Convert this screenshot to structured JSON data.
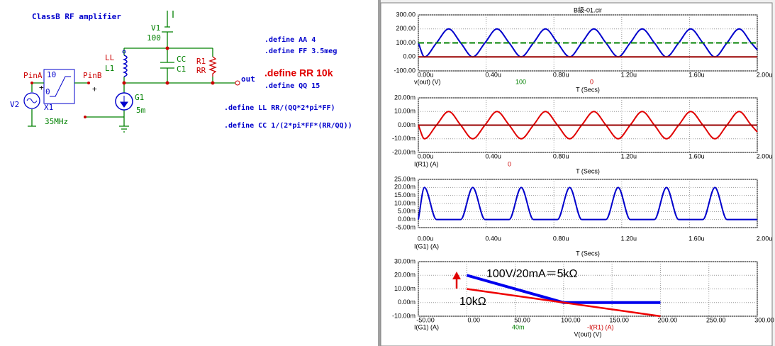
{
  "window_title": "B級-01.cir",
  "schematic": {
    "title": "ClassB  RF amplifier",
    "labels": {
      "v1": "V1",
      "v1_value": "100",
      "ll": "LL",
      "l1": "L1",
      "cc": "CC",
      "c1": "C1",
      "r1": "R1",
      "rr": "RR",
      "g1": "G1",
      "g1_value": "5m",
      "pin_a": "PinA",
      "pin_b": "PinB",
      "x1_high": "10",
      "x1_low": "0",
      "x1": "X1",
      "v2": "V2",
      "v2_value": "35MHz",
      "out": "out",
      "plus_a": "+",
      "plus_b": "+"
    },
    "defines": [
      ".define AA 4",
      ".define FF 3.5meg",
      ".define RR 10k",
      ".define QQ 15",
      ".define LL  RR/(QQ*2*pi*FF)",
      ".define CC 1/(2*pi*FF*(RR/QQ))"
    ]
  },
  "chart_data": [
    {
      "type": "line",
      "xlim": [
        0,
        2e-06
      ],
      "xticks": [
        {
          "value": 0,
          "label": "0.00u"
        },
        {
          "value": 4e-07,
          "label": "0.40u"
        },
        {
          "value": 8e-07,
          "label": "0.80u"
        },
        {
          "value": 1.2e-06,
          "label": "1.20u"
        },
        {
          "value": 1.6e-06,
          "label": "1.60u"
        },
        {
          "value": 2e-06,
          "label": "2.00u"
        }
      ],
      "ylim": [
        -100,
        300
      ],
      "yticks": [
        {
          "value": 300,
          "label": "300.00"
        },
        {
          "value": 200,
          "label": "200.00"
        },
        {
          "value": 100,
          "label": "100.00"
        },
        {
          "value": 0,
          "label": "0.00"
        },
        {
          "value": -100,
          "label": "-100.00"
        }
      ],
      "grid": true,
      "x_label": "T (Secs)",
      "y_label": "v(out) (V)",
      "readouts": [
        {
          "text": "100",
          "color": "#008000"
        },
        {
          "text": "0",
          "color": "#cc0000"
        }
      ],
      "series": [
        {
          "color": "#0000cc",
          "width": 2,
          "x": [
            0,
            3.6e-08,
            1.07e-07,
            1.79e-07,
            2.5e-07,
            3.21e-07,
            3.93e-07,
            4.64e-07,
            5.36e-07,
            6.07e-07,
            6.79e-07,
            7.5e-07,
            8.21e-07,
            8.93e-07,
            9.64e-07,
            1.036e-06,
            1.107e-06,
            1.179e-06,
            1.25e-06,
            1.321e-06,
            1.393e-06,
            1.464e-06,
            1.536e-06,
            1.607e-06,
            1.679e-06,
            1.75e-06,
            1.821e-06,
            1.893e-06,
            1.964e-06,
            2e-06
          ],
          "values": [
            100,
            0,
            100,
            200,
            100,
            0,
            100,
            200,
            100,
            0,
            100,
            200,
            100,
            0,
            100,
            200,
            100,
            0,
            100,
            200,
            100,
            0,
            100,
            200,
            100,
            0,
            100,
            200,
            100,
            50
          ]
        },
        {
          "color": "#008000",
          "width": 2,
          "dashed": true,
          "x": [
            0,
            2e-06
          ],
          "values": [
            100,
            100
          ]
        },
        {
          "color": "#990000",
          "width": 2,
          "x": [
            0,
            2e-06
          ],
          "values": [
            0,
            0
          ]
        }
      ]
    },
    {
      "type": "line",
      "xlim": [
        0,
        2e-06
      ],
      "xticks": [
        {
          "value": 0,
          "label": "0.00u"
        },
        {
          "value": 4e-07,
          "label": "0.40u"
        },
        {
          "value": 8e-07,
          "label": "0.80u"
        },
        {
          "value": 1.2e-06,
          "label": "1.20u"
        },
        {
          "value": 1.6e-06,
          "label": "1.60u"
        },
        {
          "value": 2e-06,
          "label": "2.00u"
        }
      ],
      "ylim": [
        -0.02,
        0.02
      ],
      "yticks": [
        {
          "value": 0.02,
          "label": "20.00m"
        },
        {
          "value": 0.01,
          "label": "10.00m"
        },
        {
          "value": 0,
          "label": "0.00m"
        },
        {
          "value": -0.01,
          "label": "-10.00m"
        },
        {
          "value": -0.02,
          "label": "-20.00m"
        }
      ],
      "grid": true,
      "x_label": "T (Secs)",
      "y_label": "I(R1) (A)",
      "readouts": [
        {
          "text": "0",
          "color": "#cc0000"
        }
      ],
      "series": [
        {
          "color": "#e00000",
          "width": 2,
          "x": [
            0,
            3.6e-08,
            1.07e-07,
            1.79e-07,
            2.5e-07,
            3.21e-07,
            3.93e-07,
            4.64e-07,
            5.36e-07,
            6.07e-07,
            6.79e-07,
            7.5e-07,
            8.21e-07,
            8.93e-07,
            9.64e-07,
            1.036e-06,
            1.107e-06,
            1.179e-06,
            1.25e-06,
            1.321e-06,
            1.393e-06,
            1.464e-06,
            1.536e-06,
            1.607e-06,
            1.679e-06,
            1.75e-06,
            1.821e-06,
            1.893e-06,
            1.964e-06,
            2e-06
          ],
          "values": [
            0,
            -0.01,
            0,
            0.01,
            0,
            -0.01,
            0,
            0.01,
            0,
            -0.01,
            0,
            0.01,
            0,
            -0.01,
            0,
            0.01,
            0,
            -0.01,
            0,
            0.01,
            0,
            -0.01,
            0,
            0.01,
            0,
            -0.01,
            0,
            0.01,
            0,
            -0.005
          ]
        },
        {
          "color": "#990000",
          "width": 2,
          "x": [
            0,
            2e-06
          ],
          "values": [
            0,
            0
          ]
        }
      ]
    },
    {
      "type": "line",
      "xlim": [
        0,
        2e-06
      ],
      "xticks": [
        {
          "value": 0,
          "label": "0.00u"
        },
        {
          "value": 4e-07,
          "label": "0.40u"
        },
        {
          "value": 8e-07,
          "label": "0.80u"
        },
        {
          "value": 1.2e-06,
          "label": "1.20u"
        },
        {
          "value": 1.6e-06,
          "label": "1.60u"
        },
        {
          "value": 2e-06,
          "label": "2.00u"
        }
      ],
      "ylim": [
        -0.005,
        0.025
      ],
      "yticks": [
        {
          "value": 0.025,
          "label": "25.00m"
        },
        {
          "value": 0.02,
          "label": "20.00m"
        },
        {
          "value": 0.015,
          "label": "15.00m"
        },
        {
          "value": 0.01,
          "label": "10.00m"
        },
        {
          "value": 0.005,
          "label": "5.00m"
        },
        {
          "value": 0,
          "label": "0.00m"
        },
        {
          "value": -0.005,
          "label": "-5.00m"
        }
      ],
      "grid": true,
      "x_label": "T (Secs)",
      "y_label": "I(G1) (A)",
      "series": [
        {
          "color": "#0000cc",
          "width": 2,
          "x": [
            0,
            3.6e-08,
            1.07e-07,
            2.5e-07,
            3.21e-07,
            3.93e-07,
            5.36e-07,
            6.07e-07,
            6.79e-07,
            8.21e-07,
            8.93e-07,
            9.64e-07,
            1.107e-06,
            1.179e-06,
            1.25e-06,
            1.393e-06,
            1.464e-06,
            1.536e-06,
            1.679e-06,
            1.75e-06,
            1.821e-06,
            2e-06
          ],
          "values": [
            0,
            0.02,
            0,
            0,
            0.02,
            0,
            0,
            0.02,
            0,
            0,
            0.02,
            0,
            0,
            0.02,
            0,
            0,
            0.02,
            0,
            0,
            0.02,
            0,
            0
          ]
        }
      ]
    },
    {
      "type": "xy",
      "xlim": [
        -50,
        300
      ],
      "xticks": [
        {
          "value": -50,
          "label": "-50.00"
        },
        {
          "value": 0,
          "label": "0.00"
        },
        {
          "value": 50,
          "label": "50.00"
        },
        {
          "value": 100,
          "label": "100.00"
        },
        {
          "value": 150,
          "label": "150.00"
        },
        {
          "value": 200,
          "label": "200.00"
        },
        {
          "value": 250,
          "label": "250.00"
        },
        {
          "value": 300,
          "label": "300.00"
        }
      ],
      "ylim": [
        -0.01,
        0.03
      ],
      "yticks": [
        {
          "value": 0.03,
          "label": "30.00m"
        },
        {
          "value": 0.02,
          "label": "20.00m"
        },
        {
          "value": 0.01,
          "label": "10.00m"
        },
        {
          "value": 0,
          "label": "0.00m"
        },
        {
          "value": -0.01,
          "label": "-10.00m"
        }
      ],
      "grid": true,
      "x_label": "V(out) (V)",
      "y_label": "I(G1) (A)",
      "readouts": [
        {
          "text": "40m",
          "color": "#008000"
        },
        {
          "text": "-I(R1) (A)",
          "color": "#cc0000"
        }
      ],
      "annotations": [
        "100V/20mA＝5kΩ",
        "10kΩ"
      ],
      "series": [
        {
          "color": "#0000ee",
          "width": 4,
          "x": [
            0,
            100,
            200
          ],
          "values": [
            0.02,
            0,
            0
          ]
        },
        {
          "color": "#ee0000",
          "width": 2.5,
          "x": [
            0,
            200
          ],
          "values": [
            0.01,
            -0.01
          ]
        }
      ]
    }
  ]
}
